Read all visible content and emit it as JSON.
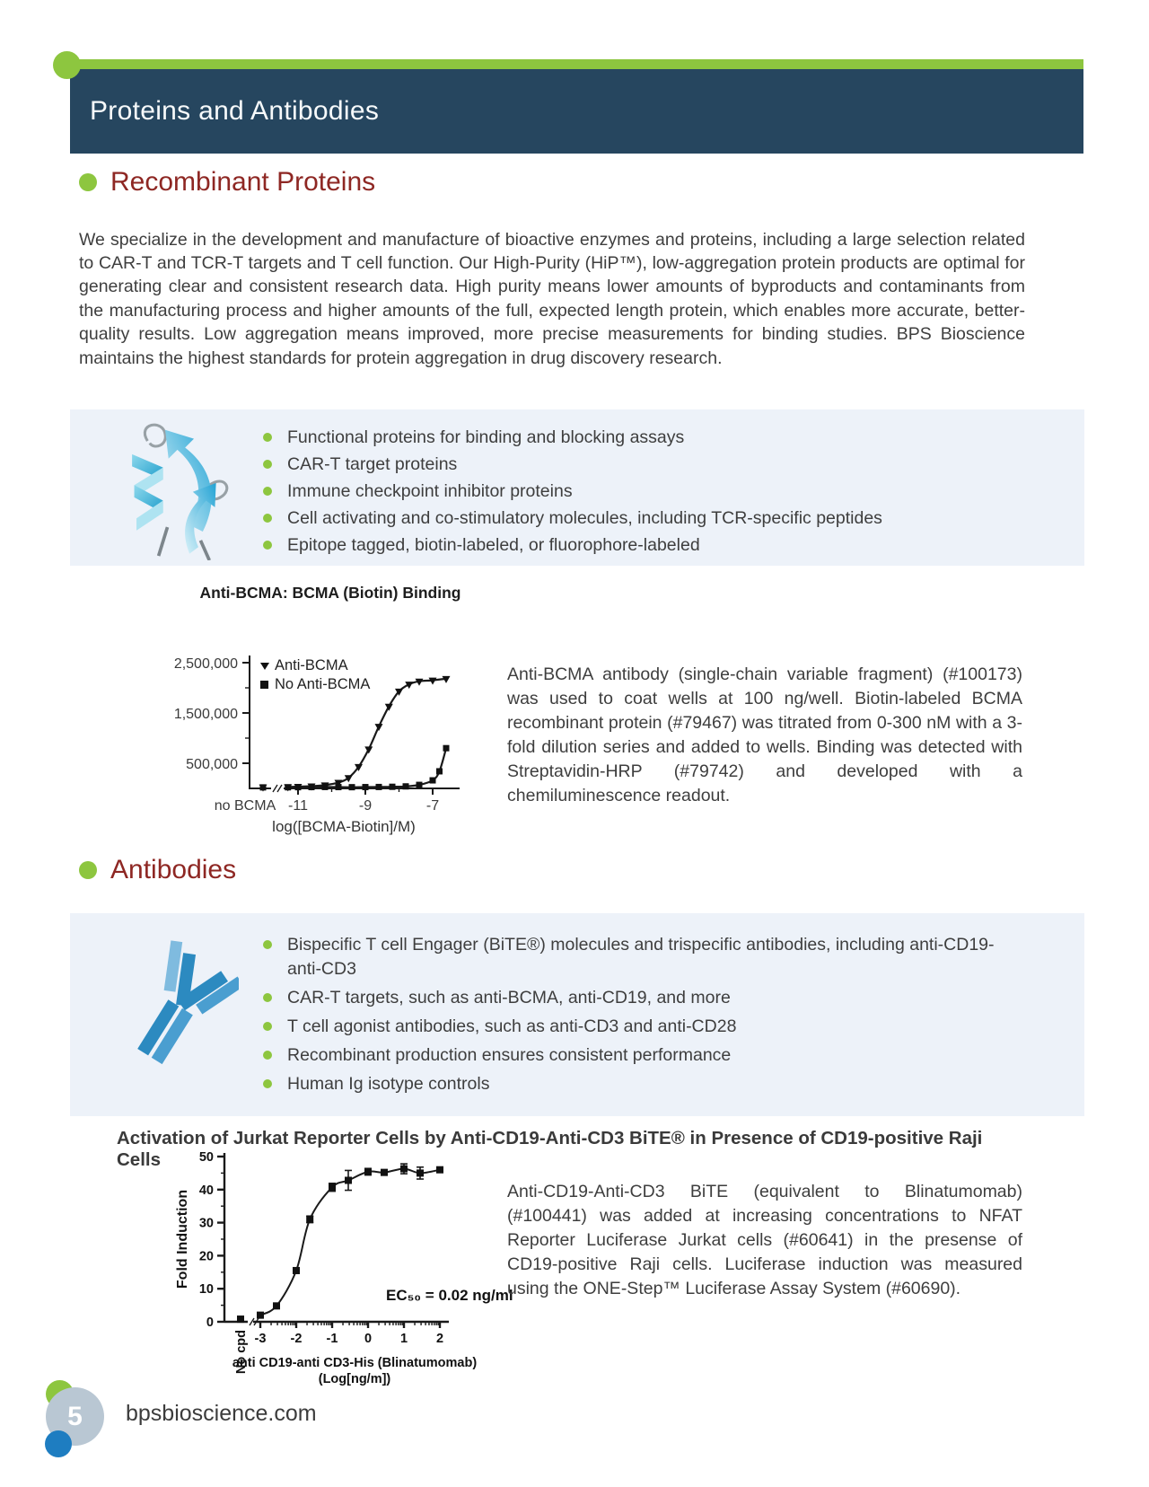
{
  "header": {
    "title": "Proteins and Antibodies"
  },
  "footer": {
    "page_number": "5",
    "website": "bpsbioscience.com"
  },
  "colors": {
    "accent_green": "#8dc63f",
    "header_navy": "#26465f",
    "heading_maroon": "#8e2723",
    "panel_blue": "#edf2f9"
  },
  "sections": {
    "recombinant": {
      "title": "Recombinant Proteins",
      "intro": "We specialize in the development and manufacture of bioactive enzymes and proteins, including a large selection related to CAR-T and TCR-T targets and T cell function. Our High-Purity (HiP™), low-aggregation protein products are optimal for generating clear and consistent research data. High purity means lower amounts of byproducts and contaminants from the manufacturing process and higher amounts of the full, expected length protein, which enables more accurate, better-quality results. Low aggregation means improved, more precise measurements for binding studies. BPS Bioscience maintains the highest standards for protein aggregation in drug discovery research.",
      "bullets": [
        "Functional proteins for binding and blocking assays",
        "CAR-T target proteins",
        "Immune checkpoint inhibitor proteins",
        "Cell activating and co-stimulatory molecules, including TCR-specific peptides",
        "Epitope tagged, biotin-labeled, or fluorophore-labeled"
      ]
    },
    "antibodies": {
      "title": "Antibodies",
      "bullets": [
        "Bispecific T cell Engager (BiTE®) molecules and trispecific antibodies, including anti-CD19-anti-CD3",
        "CAR-T targets, such as anti-BCMA, anti-CD19, and more",
        "T cell agonist antibodies, such as anti-CD3 and anti-CD28",
        "Recombinant production ensures consistent performance",
        "Human Ig isotype controls"
      ]
    }
  },
  "figures": {
    "bcma": {
      "caption": "Anti-BCMA antibody (single-chain variable fragment) (#100173) was used to coat wells at 100 ng/well. Biotin-labeled BCMA recombinant protein (#79467) was titrated from 0-300 nM with a 3-fold dilution series and added to wells. Binding was detected with Streptavidin-HRP (#79742) and developed with a chemiluminescence readout."
    },
    "jurkat": {
      "caption": "Anti-CD19-Anti-CD3 BiTE (equivalent to Blinatumomab) (#100441) was added at increasing concentrations to NFAT Reporter Luciferase Jurkat cells (#60641) in the presense of CD19-positive Raji cells. Luciferase induction was measured using the ONE-Step™ Luciferase Assay System (#60690)."
    }
  },
  "chart_data": [
    {
      "type": "line",
      "title": "Anti-BCMA: BCMA (Biotin) Binding",
      "xlabel": "log([BCMA-Biotin]/M)",
      "ylabel": "",
      "baseline_category": "no BCMA",
      "xlim": [
        -11.6,
        -6.4
      ],
      "ylim": [
        0,
        2500000
      ],
      "xticks": [
        -11,
        -9,
        -7
      ],
      "yticks": [
        500000,
        1500000,
        2500000
      ],
      "ytick_labels": [
        "500,000",
        "1,500,000",
        "2,500,000"
      ],
      "legend_position": "top-left",
      "grid": false,
      "series": [
        {
          "name": "Anti-BCMA",
          "marker": "triangle-down",
          "baseline_value": 25000,
          "x": [
            -11.3,
            -11,
            -10.6,
            -10.2,
            -9.8,
            -9.5,
            -9.2,
            -8.9,
            -8.6,
            -8.3,
            -8.0,
            -7.7,
            -7.4,
            -7.0,
            -6.6
          ],
          "y": [
            30000,
            35000,
            45000,
            65000,
            115000,
            210000,
            430000,
            780000,
            1230000,
            1630000,
            1930000,
            2070000,
            2130000,
            2150000,
            2180000
          ]
        },
        {
          "name": "No Anti-BCMA",
          "marker": "square",
          "baseline_value": 20000,
          "x": [
            -11.3,
            -11,
            -10.6,
            -10.2,
            -9.8,
            -9.4,
            -9.0,
            -8.6,
            -8.2,
            -7.8,
            -7.4,
            -7.0,
            -6.8,
            -6.6
          ],
          "y": [
            22000,
            24000,
            26000,
            28000,
            26000,
            24000,
            26000,
            28000,
            32000,
            40000,
            70000,
            160000,
            340000,
            800000
          ]
        }
      ]
    },
    {
      "type": "scatter",
      "title": "Activation of Jurkat Reporter Cells by Anti-CD19-Anti-CD3 BiTE® in Presence of CD19-positive Raji Cells",
      "xlabel": "anti CD19-anti CD3-His (Blinatumomab)",
      "xlabel2": "(Log[ng/m])",
      "ylabel": "Fold Induction",
      "annotation": "EC₅₀ = 0.02 ng/ml",
      "ec50": "0.02 ng/ml",
      "baseline_category": "No cpd",
      "baseline_value": 0.8,
      "xlim": [
        -3.2,
        2.2
      ],
      "ylim": [
        0,
        50
      ],
      "xticks": [
        -3,
        -2,
        -1,
        0,
        1,
        2
      ],
      "yticks": [
        0,
        10,
        20,
        30,
        40,
        50
      ],
      "grid": false,
      "x": [
        -3,
        -2.55,
        -2,
        -1.62,
        -1,
        -0.55,
        0,
        0.45,
        1,
        1.45,
        2
      ],
      "y": [
        2,
        4.8,
        15.5,
        31,
        40.7,
        42.8,
        45.4,
        45.2,
        46.3,
        45.0,
        46.0
      ],
      "yerr": [
        0.5,
        0.5,
        0.8,
        1.0,
        1.2,
        3.0,
        1.0,
        0.8,
        1.5,
        1.8,
        0.8
      ]
    }
  ]
}
